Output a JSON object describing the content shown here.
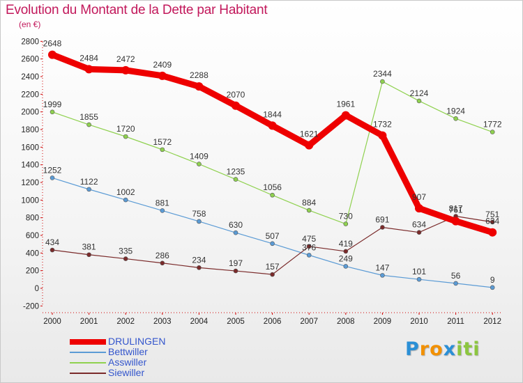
{
  "title": "Evolution du Montant de la Dette par Habitant",
  "subtitle": "(en €)",
  "brand": {
    "letters": [
      {
        "ch": "P",
        "color": "#2a8fd6"
      },
      {
        "ch": "r",
        "color": "#f29000"
      },
      {
        "ch": "o",
        "color": "#f29000"
      },
      {
        "ch": "x",
        "color": "#2a8fd6"
      },
      {
        "ch": "i",
        "color": "#8cc63f"
      },
      {
        "ch": "t",
        "color": "#8cc63f"
      },
      {
        "ch": "i",
        "color": "#8cc63f"
      }
    ]
  },
  "chart_data": {
    "type": "line",
    "x": [
      "2000",
      "2001",
      "2002",
      "2003",
      "2004",
      "2005",
      "2006",
      "2007",
      "2008",
      "2009",
      "2010",
      "2011",
      "2012"
    ],
    "ylim": [
      -200,
      2800
    ],
    "yticks": [
      -200,
      0,
      200,
      400,
      600,
      800,
      1000,
      1200,
      1400,
      1600,
      1800,
      2000,
      2200,
      2400,
      2600,
      2800
    ],
    "grid": false,
    "legend_position": "bottom-left",
    "series": [
      {
        "name": "Bettwiller",
        "color": "#5b9bd5",
        "values": [
          1252,
          1122,
          1002,
          881,
          758,
          630,
          507,
          376,
          249,
          147,
          101,
          56,
          9
        ]
      },
      {
        "name": "Asswiller",
        "color": "#8fd14f",
        "values": [
          1999,
          1855,
          1720,
          1572,
          1409,
          1235,
          1056,
          884,
          730,
          2344,
          2124,
          1924,
          1772
        ]
      },
      {
        "name": "Siewiller",
        "color": "#7a2a2a",
        "values": [
          434,
          381,
          335,
          286,
          234,
          197,
          157,
          475,
          419,
          691,
          634,
          817,
          751
        ]
      },
      {
        "name": "DRULINGEN",
        "color": "#ee0000",
        "values": [
          2648,
          2484,
          2472,
          2409,
          2288,
          2070,
          1844,
          1621,
          1961,
          1732,
          907,
          761,
          634
        ]
      }
    ],
    "legend_order": [
      "DRULINGEN",
      "Bettwiller",
      "Asswiller",
      "Siewiller"
    ]
  }
}
